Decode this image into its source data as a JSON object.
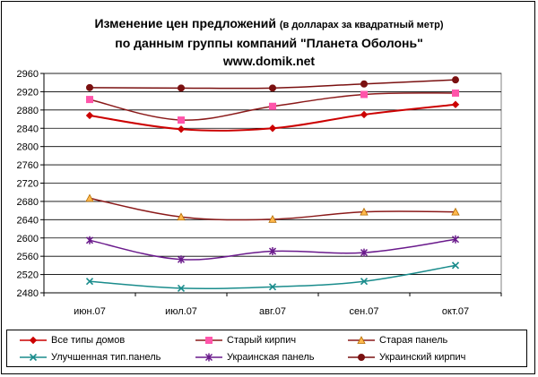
{
  "title": {
    "line1_main": "Изменение  цен предложений",
    "line1_small": "(в долларах за квадратный метр)",
    "line2": "по данным группы компаний \"Планета Оболонь\"",
    "line3": "www.domik.net"
  },
  "chart_data": {
    "type": "line",
    "categories": [
      "июн.07",
      "июл.07",
      "авг.07",
      "сен.07",
      "окт.07"
    ],
    "ylim": [
      2480,
      2960
    ],
    "yticks": [
      2480,
      2520,
      2560,
      2600,
      2640,
      2680,
      2720,
      2760,
      2800,
      2840,
      2880,
      2920,
      2960
    ],
    "grid": true,
    "legend_position": "bottom",
    "series": [
      {
        "name": "Все типы домов",
        "values": [
          2868,
          2838,
          2840,
          2870,
          2892
        ],
        "color": "#cc0000",
        "marker": "diamond"
      },
      {
        "name": "Старый кирпич",
        "values": [
          2903,
          2858,
          2888,
          2914,
          2917
        ],
        "color": "#8b1a1a",
        "marker": "square",
        "markerColor": "#ff55aa"
      },
      {
        "name": "Старая панель",
        "values": [
          2687,
          2646,
          2641,
          2657,
          2657
        ],
        "color": "#8b1a1a",
        "marker": "triangle",
        "markerColor": "#ffb84d"
      },
      {
        "name": "Улучшенная тип.панель",
        "values": [
          2505,
          2490,
          2493,
          2505,
          2540
        ],
        "color": "#1a8c8c",
        "marker": "x"
      },
      {
        "name": "Украинская панель",
        "values": [
          2595,
          2553,
          2571,
          2568,
          2597
        ],
        "color": "#6a1a8c",
        "marker": "star"
      },
      {
        "name": "Украинский кирпич",
        "values": [
          2929,
          2928,
          2928,
          2937,
          2946
        ],
        "color": "#7a1010",
        "marker": "circle"
      }
    ]
  }
}
